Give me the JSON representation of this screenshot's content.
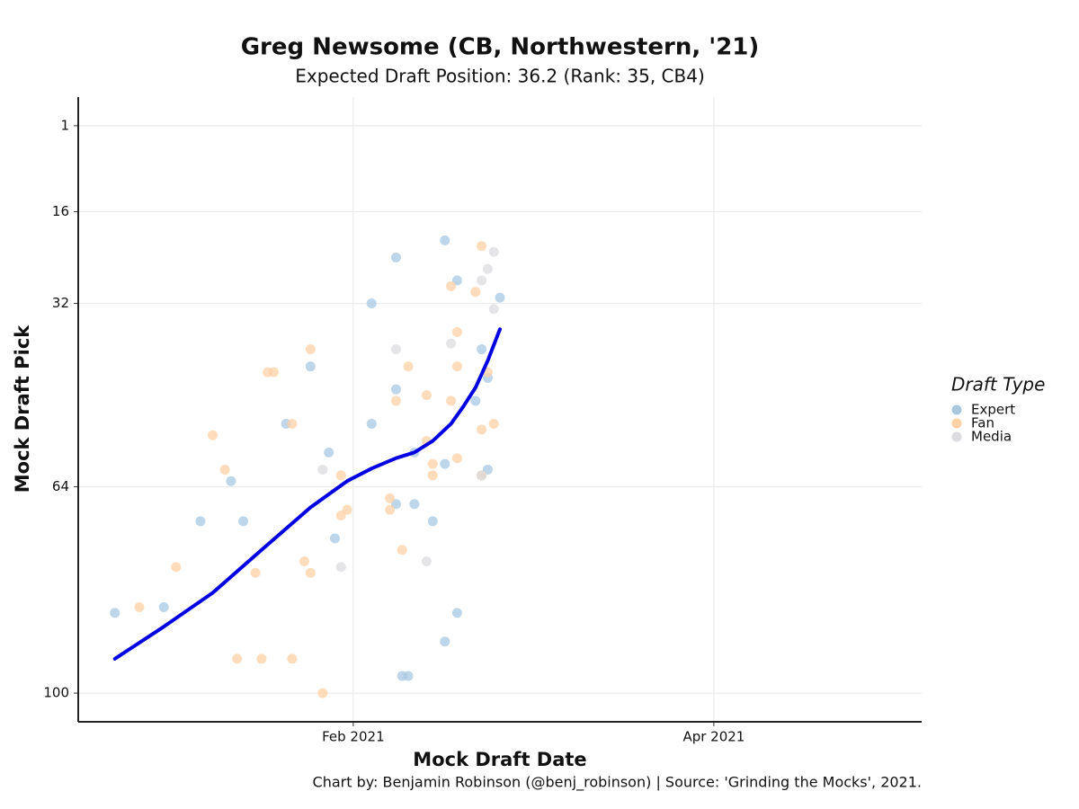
{
  "chart_data": {
    "type": "scatter",
    "title": "Greg Newsome (CB, Northwestern, '21)",
    "subtitle": "Expected Draft Position: 36.2 (Rank: 35, CB4)",
    "x_label": "Mock Draft Date",
    "y_label": "Mock Draft Pick",
    "caption": "Chart by: Benjamin Robinson (@benj_robinson) | Source: 'Grinding the Mocks', 2021.",
    "legend_title": "Draft Type",
    "legend_position": "right",
    "grid": true,
    "y_reversed": true,
    "xlim": [
      "2020-12-18",
      "2021-05-05"
    ],
    "xticks": [
      {
        "value": "2021-02-01",
        "label": "Feb 2021"
      },
      {
        "value": "2021-04-01",
        "label": "Apr 2021"
      }
    ],
    "ylim": [
      -4,
      105
    ],
    "yticks": [
      1,
      16,
      32,
      64,
      100
    ],
    "series": [
      {
        "name": "Expert",
        "color": "#a8c8e2",
        "x": [
          "2020-12-24",
          "2021-01-01",
          "2021-01-07",
          "2021-01-12",
          "2021-01-14",
          "2021-01-21",
          "2021-01-25",
          "2021-01-28",
          "2021-01-29",
          "2021-02-04",
          "2021-02-04",
          "2021-02-08",
          "2021-02-08",
          "2021-02-08",
          "2021-02-09",
          "2021-02-10",
          "2021-02-11",
          "2021-02-11",
          "2021-02-14",
          "2021-02-16",
          "2021-02-16",
          "2021-02-16",
          "2021-02-18",
          "2021-02-18",
          "2021-02-21",
          "2021-02-22",
          "2021-02-23",
          "2021-02-23",
          "2021-02-25",
          "2021-02-22"
        ],
        "values": [
          86,
          85,
          70,
          63,
          70,
          53,
          43,
          58,
          73,
          32,
          53,
          24,
          47,
          67,
          97,
          97,
          58,
          67,
          70,
          21,
          60,
          91,
          28,
          86,
          49,
          40,
          45,
          61,
          31,
          62
        ]
      },
      {
        "name": "Fan",
        "color": "#fdd0a6",
        "x": [
          "2020-12-28",
          "2021-01-03",
          "2021-01-09",
          "2021-01-11",
          "2021-01-13",
          "2021-01-16",
          "2021-01-17",
          "2021-01-18",
          "2021-01-19",
          "2021-01-22",
          "2021-01-22",
          "2021-01-24",
          "2021-01-25",
          "2021-01-25",
          "2021-01-27",
          "2021-01-30",
          "2021-01-30",
          "2021-01-31",
          "2021-02-07",
          "2021-02-07",
          "2021-02-08",
          "2021-02-09",
          "2021-02-10",
          "2021-02-13",
          "2021-02-13",
          "2021-02-14",
          "2021-02-14",
          "2021-02-17",
          "2021-02-17",
          "2021-02-18",
          "2021-02-18",
          "2021-02-18",
          "2021-02-21",
          "2021-02-22",
          "2021-02-22",
          "2021-02-23",
          "2021-02-24",
          "2021-02-22"
        ],
        "values": [
          85,
          78,
          55,
          61,
          94,
          79,
          94,
          44,
          44,
          53,
          94,
          77,
          40,
          79,
          100,
          62,
          69,
          68,
          66,
          68,
          49,
          75,
          43,
          48,
          56,
          60,
          62,
          29,
          49,
          37,
          43,
          59,
          30,
          22,
          54,
          44,
          53,
          62
        ]
      },
      {
        "name": "Media",
        "color": "#dcdce0",
        "x": [
          "2021-01-27",
          "2021-01-30",
          "2021-02-08",
          "2021-02-13",
          "2021-02-17",
          "2021-02-22",
          "2021-02-23",
          "2021-02-24",
          "2021-02-24",
          "2021-02-22"
        ],
        "values": [
          61,
          78,
          40,
          77,
          39,
          28,
          26,
          23,
          33,
          62
        ]
      }
    ],
    "trend_line": {
      "color": "#0000e0",
      "x": [
        "2020-12-24",
        "2021-01-01",
        "2021-01-09",
        "2021-01-17",
        "2021-01-25",
        "2021-01-31",
        "2021-02-04",
        "2021-02-08",
        "2021-02-11",
        "2021-02-14",
        "2021-02-17",
        "2021-02-19",
        "2021-02-21",
        "2021-02-23",
        "2021-02-25"
      ],
      "values": [
        94,
        88.4,
        82.5,
        75,
        67.6,
        63,
        60.8,
        59,
        58,
        56,
        53,
        50,
        46.7,
        42,
        36.5
      ]
    }
  }
}
